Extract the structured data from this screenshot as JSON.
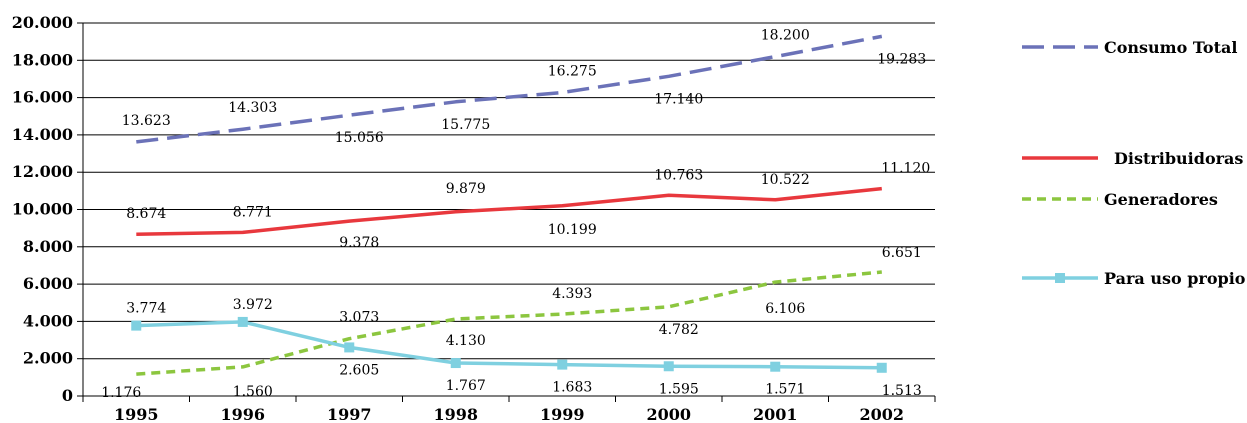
{
  "chart_data": {
    "type": "line",
    "categories": [
      "1995",
      "1996",
      "1997",
      "1998",
      "1999",
      "2000",
      "2001",
      "2002"
    ],
    "ylim": [
      0,
      20000
    ],
    "yticks": [
      0,
      2000,
      4000,
      6000,
      8000,
      10000,
      12000,
      14000,
      16000,
      18000,
      20000
    ],
    "ytick_labels": [
      "0",
      "2.000",
      "4.000",
      "6.000",
      "8.000",
      "10.000",
      "12.000",
      "14.000",
      "16.000",
      "18.000",
      "20.000"
    ],
    "grid": true,
    "legend_position": "right",
    "series": [
      {
        "name": "Consumo Total",
        "color": "#6b72b8",
        "dash": "long-dash",
        "values": [
          13623,
          14303,
          15056,
          15775,
          16275,
          17140,
          18200,
          19283
        ],
        "labels": [
          "13.623",
          "14.303",
          "15.056",
          "15.775",
          "16.275",
          "17.140",
          "18.200",
          "19.283"
        ]
      },
      {
        "name": "Distribuidoras",
        "color": "#e8383d",
        "dash": "solid",
        "values": [
          8674,
          8771,
          9378,
          9879,
          10199,
          10763,
          10522,
          11120
        ],
        "labels": [
          "8.674",
          "8.771",
          "9.378",
          "9.879",
          "10.199",
          "10.763",
          "10.522",
          "11.120"
        ]
      },
      {
        "name": "Generadores",
        "color": "#8cc63f",
        "dash": "short-dash",
        "values": [
          1176,
          1560,
          3073,
          4130,
          4393,
          4782,
          6106,
          6651
        ],
        "labels": [
          "1.176",
          "1.560",
          "3.073",
          "4.130",
          "4.393",
          "4.782",
          "6.106",
          "6.651"
        ]
      },
      {
        "name": "Para uso propio",
        "color": "#7fd0e0",
        "dash": "solid",
        "marker": "square",
        "values": [
          3774,
          3972,
          2605,
          1767,
          1683,
          1595,
          1571,
          1513
        ],
        "labels": [
          "3.774",
          "3.972",
          "2.605",
          "1.767",
          "1.683",
          "1.595",
          "1.571",
          "1.513"
        ]
      }
    ]
  }
}
